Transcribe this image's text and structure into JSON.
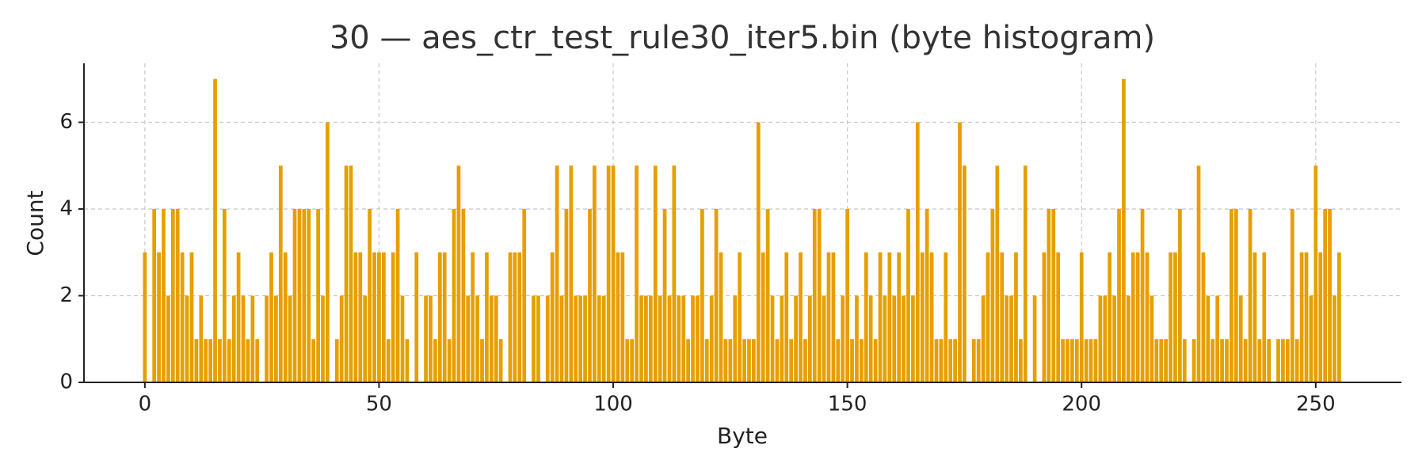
{
  "chart_data": {
    "type": "bar",
    "title": "30 — aes_ctr_test_rule30_iter5.bin (byte histogram)",
    "xlabel": "Byte",
    "ylabel": "Count",
    "color": "#E69F00",
    "grid": true,
    "x": [
      0,
      1,
      2,
      3,
      4,
      5,
      6,
      7,
      8,
      9,
      10,
      11,
      12,
      13,
      14,
      15,
      16,
      17,
      18,
      19,
      20,
      21,
      22,
      23,
      24,
      25,
      26,
      27,
      28,
      29,
      30,
      31,
      32,
      33,
      34,
      35,
      36,
      37,
      38,
      39,
      40,
      41,
      42,
      43,
      44,
      45,
      46,
      47,
      48,
      49,
      50,
      51,
      52,
      53,
      54,
      55,
      56,
      57,
      58,
      59,
      60,
      61,
      62,
      63,
      64,
      65,
      66,
      67,
      68,
      69,
      70,
      71,
      72,
      73,
      74,
      75,
      76,
      77,
      78,
      79,
      80,
      81,
      82,
      83,
      84,
      85,
      86,
      87,
      88,
      89,
      90,
      91,
      92,
      93,
      94,
      95,
      96,
      97,
      98,
      99,
      100,
      101,
      102,
      103,
      104,
      105,
      106,
      107,
      108,
      109,
      110,
      111,
      112,
      113,
      114,
      115,
      116,
      117,
      118,
      119,
      120,
      121,
      122,
      123,
      124,
      125,
      126,
      127,
      128,
      129,
      130,
      131,
      132,
      133,
      134,
      135,
      136,
      137,
      138,
      139,
      140,
      141,
      142,
      143,
      144,
      145,
      146,
      147,
      148,
      149,
      150,
      151,
      152,
      153,
      154,
      155,
      156,
      157,
      158,
      159,
      160,
      161,
      162,
      163,
      164,
      165,
      166,
      167,
      168,
      169,
      170,
      171,
      172,
      173,
      174,
      175,
      176,
      177,
      178,
      179,
      180,
      181,
      182,
      183,
      184,
      185,
      186,
      187,
      188,
      189,
      190,
      191,
      192,
      193,
      194,
      195,
      196,
      197,
      198,
      199,
      200,
      201,
      202,
      203,
      204,
      205,
      206,
      207,
      208,
      209,
      210,
      211,
      212,
      213,
      214,
      215,
      216,
      217,
      218,
      219,
      220,
      221,
      222,
      223,
      224,
      225,
      226,
      227,
      228,
      229,
      230,
      231,
      232,
      233,
      234,
      235,
      236,
      237,
      238,
      239,
      240,
      241,
      242,
      243,
      244,
      245,
      246,
      247,
      248,
      249,
      250,
      251,
      252,
      253,
      254,
      255
    ],
    "values": [
      3,
      0,
      4,
      3,
      4,
      2,
      4,
      4,
      3,
      2,
      3,
      1,
      2,
      1,
      1,
      7,
      1,
      4,
      1,
      2,
      3,
      2,
      1,
      2,
      1,
      0,
      2,
      3,
      2,
      5,
      3,
      2,
      4,
      4,
      4,
      4,
      1,
      4,
      2,
      6,
      0,
      1,
      2,
      5,
      5,
      3,
      3,
      2,
      4,
      3,
      3,
      3,
      1,
      3,
      4,
      2,
      1,
      0,
      3,
      0,
      2,
      2,
      1,
      3,
      3,
      1,
      4,
      5,
      4,
      2,
      3,
      2,
      1,
      3,
      2,
      2,
      1,
      0,
      3,
      3,
      3,
      4,
      0,
      2,
      2,
      0,
      2,
      3,
      5,
      2,
      4,
      5,
      2,
      2,
      2,
      4,
      5,
      2,
      2,
      5,
      5,
      3,
      3,
      1,
      1,
      5,
      2,
      2,
      2,
      5,
      2,
      4,
      2,
      5,
      2,
      2,
      1,
      2,
      2,
      4,
      1,
      2,
      4,
      3,
      1,
      1,
      2,
      3,
      1,
      1,
      1,
      6,
      3,
      4,
      2,
      1,
      2,
      3,
      1,
      2,
      3,
      1,
      2,
      4,
      4,
      2,
      3,
      3,
      1,
      2,
      4,
      1,
      2,
      1,
      3,
      2,
      1,
      3,
      2,
      3,
      2,
      3,
      2,
      4,
      2,
      6,
      3,
      4,
      3,
      1,
      1,
      3,
      1,
      1,
      6,
      5,
      0,
      1,
      1,
      2,
      3,
      4,
      5,
      3,
      2,
      2,
      3,
      1,
      5,
      0,
      2,
      0,
      3,
      4,
      4,
      3,
      1,
      1,
      1,
      1,
      3,
      1,
      1,
      1,
      2,
      2,
      3,
      2,
      4,
      7,
      2,
      3,
      3,
      4,
      3,
      2,
      1,
      1,
      1,
      3,
      3,
      4,
      1,
      0,
      1,
      5,
      3,
      2,
      1,
      2,
      1,
      1,
      4,
      4,
      2,
      1,
      4,
      3,
      1,
      3,
      1,
      0,
      1,
      1,
      1,
      4,
      1,
      3,
      3,
      2,
      5,
      3,
      4,
      4,
      2,
      3
    ],
    "xlim": [
      -13,
      268.3
    ],
    "xticks": [
      0,
      50,
      100,
      150,
      200,
      250
    ],
    "ylim": [
      0,
      7.36
    ],
    "yticks": [
      0,
      2,
      4,
      6
    ]
  }
}
